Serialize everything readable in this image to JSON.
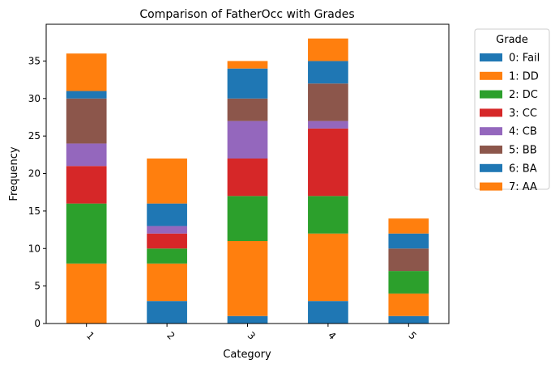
{
  "chart_data": {
    "type": "bar",
    "stacked": true,
    "title": "Comparison of FatherOcc with Grades",
    "xlabel": "Category",
    "ylabel": "Frequency",
    "categories": [
      "1",
      "2",
      "3",
      "4",
      "5"
    ],
    "ylim": [
      0,
      39.9
    ],
    "yticks": [
      0,
      5,
      10,
      15,
      20,
      25,
      30,
      35
    ],
    "grid": false,
    "legend": {
      "title": "Grade",
      "position": "outside-right"
    },
    "series": [
      {
        "name": "0: Fail",
        "color": "#1f77b4",
        "values": [
          0,
          3,
          1,
          3,
          1
        ]
      },
      {
        "name": "1: DD",
        "color": "#ff7f0e",
        "values": [
          8,
          5,
          10,
          9,
          3
        ]
      },
      {
        "name": "2: DC",
        "color": "#2ca02c",
        "values": [
          8,
          2,
          6,
          5,
          3
        ]
      },
      {
        "name": "3: CC",
        "color": "#d62728",
        "values": [
          5,
          2,
          5,
          9,
          0
        ]
      },
      {
        "name": "4: CB",
        "color": "#9467bd",
        "values": [
          3,
          1,
          5,
          1,
          0
        ]
      },
      {
        "name": "5: BB",
        "color": "#8c564b",
        "values": [
          6,
          0,
          3,
          5,
          3
        ]
      },
      {
        "name": "6: BA",
        "color": "#1f77b4",
        "values": [
          1,
          3,
          4,
          3,
          2
        ]
      },
      {
        "name": "7: AA",
        "color": "#ff7f0e",
        "values": [
          5,
          6,
          1,
          3,
          2
        ]
      }
    ]
  }
}
